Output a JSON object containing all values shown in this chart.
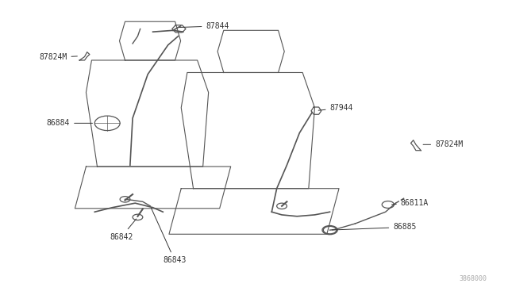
{
  "background_color": "#ffffff",
  "line_color": "#555555",
  "text_color": "#333333",
  "watermark": "3868000",
  "parts": [
    {
      "id": "87844",
      "x_label": 0.42,
      "y_label": 0.87,
      "side": "left"
    },
    {
      "id": "87824M",
      "x_label": 0.11,
      "y_label": 0.8,
      "side": "left"
    },
    {
      "id": "86884",
      "x_label": 0.11,
      "y_label": 0.58,
      "side": "left"
    },
    {
      "id": "86842",
      "x_label": 0.27,
      "y_label": 0.18,
      "side": "left"
    },
    {
      "id": "86843",
      "x_label": 0.37,
      "y_label": 0.1,
      "side": "left"
    },
    {
      "id": "87944",
      "x_label": 0.67,
      "y_label": 0.62,
      "side": "right"
    },
    {
      "id": "87824M",
      "x_label": 0.83,
      "y_label": 0.52,
      "side": "right"
    },
    {
      "id": "86811A",
      "x_label": 0.78,
      "y_label": 0.3,
      "side": "right"
    },
    {
      "id": "86885",
      "x_label": 0.78,
      "y_label": 0.22,
      "side": "right"
    }
  ]
}
